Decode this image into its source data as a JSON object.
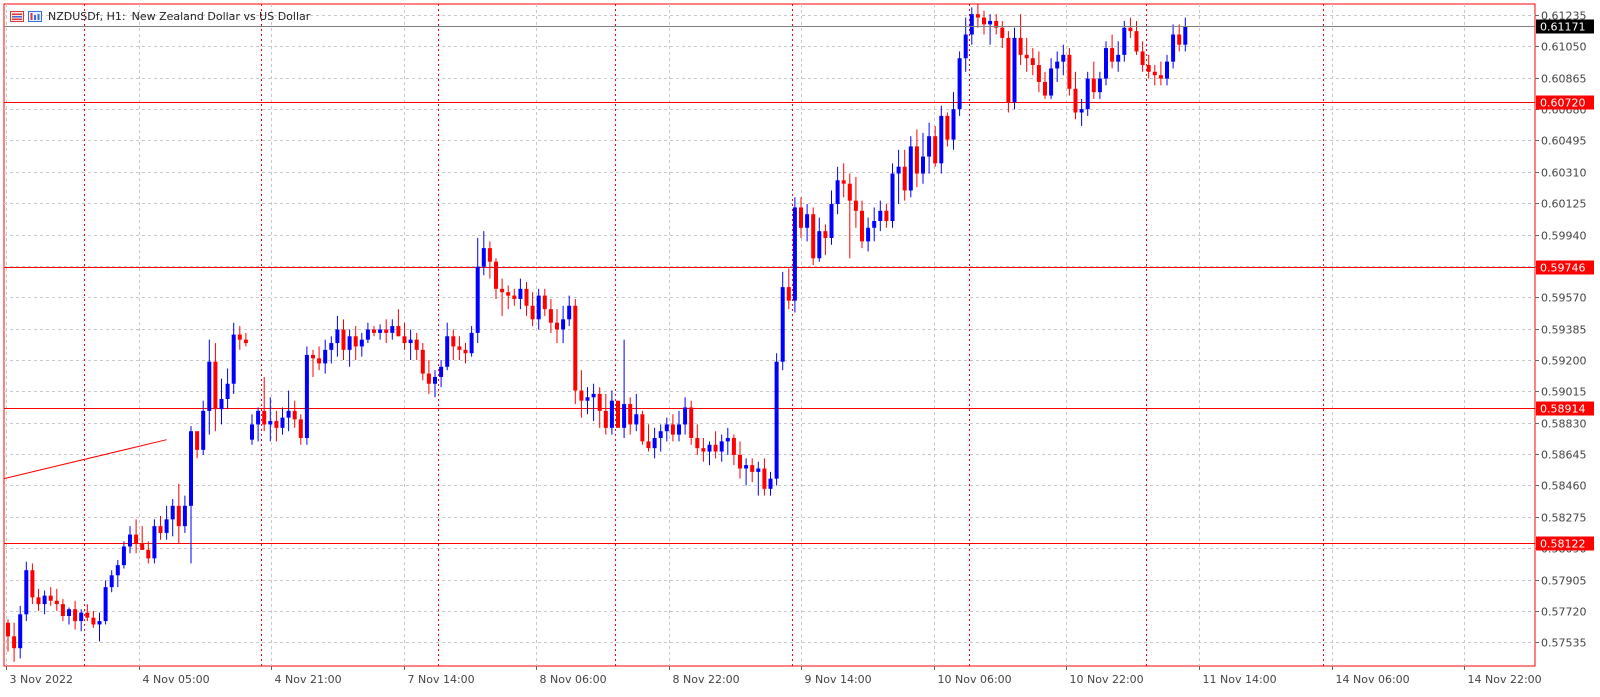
{
  "header": {
    "symbol": "NZDUSDf, H1:",
    "description": "New Zealand Dollar vs US Dollar",
    "icons": [
      "chart-window-icon",
      "symbol-icon"
    ]
  },
  "colors": {
    "bull": "#0000ff",
    "bear": "#ff0000",
    "grid": "#c8c8c8",
    "period_sep": "#ff0000",
    "hline": "#ff0000",
    "bid_line": "#808080",
    "price_label_bg": "#ff0000",
    "current_label_bg": "#000000",
    "axis": "#ff0000",
    "axis_text": "#444444"
  },
  "chart_data": {
    "type": "candlestick",
    "title": "",
    "timeframe": "H1",
    "ylim": [
      0.57395,
      0.613
    ],
    "y_ticks": [
      "0.61235",
      "0.61050",
      "0.60865",
      "0.60680",
      "0.60495",
      "0.60310",
      "0.60125",
      "0.59940",
      "0.59755",
      "0.59570",
      "0.59385",
      "0.59200",
      "0.59015",
      "0.58830",
      "0.58645",
      "0.58460",
      "0.58275",
      "0.58090",
      "0.57905",
      "0.57720",
      "0.57535"
    ],
    "x_ticks": [
      "3 Nov 2022",
      "4 Nov 05:00",
      "4 Nov 21:00",
      "7 Nov 14:00",
      "8 Nov 06:00",
      "8 Nov 22:00",
      "9 Nov 14:00",
      "10 Nov 06:00",
      "10 Nov 22:00",
      "11 Nov 14:00",
      "14 Nov 06:00",
      "14 Nov 22:00"
    ],
    "horizontal_lines": [
      {
        "price": 0.6072,
        "label": "0.60720"
      },
      {
        "price": 0.59746,
        "label": "0.59746"
      },
      {
        "price": 0.58914,
        "label": "0.58914"
      },
      {
        "price": 0.58122,
        "label": "0.58122"
      }
    ],
    "current_price": {
      "price": 0.61171,
      "label": "0.61171"
    },
    "trend_line": {
      "from": [
        0,
        0.585
      ],
      "to": [
        26,
        0.5873
      ]
    },
    "period_separators": [
      13,
      42,
      71,
      100,
      129,
      158,
      187,
      216
    ],
    "candles": [
      [
        0.5765,
        0.5767,
        0.5748,
        0.5757
      ],
      [
        0.5757,
        0.5765,
        0.5742,
        0.575
      ],
      [
        0.575,
        0.5775,
        0.5744,
        0.577
      ],
      [
        0.577,
        0.5801,
        0.5766,
        0.5796
      ],
      [
        0.5796,
        0.58,
        0.5776,
        0.578
      ],
      [
        0.578,
        0.5785,
        0.5772,
        0.5776
      ],
      [
        0.5776,
        0.5784,
        0.577,
        0.5781
      ],
      [
        0.5781,
        0.5786,
        0.5775,
        0.5778
      ],
      [
        0.5778,
        0.5785,
        0.5772,
        0.5776
      ],
      [
        0.5776,
        0.5779,
        0.5766,
        0.5769
      ],
      [
        0.5769,
        0.5774,
        0.5764,
        0.5773
      ],
      [
        0.5773,
        0.5778,
        0.5761,
        0.5766
      ],
      [
        0.5766,
        0.5773,
        0.576,
        0.5771
      ],
      [
        0.5771,
        0.5776,
        0.5766,
        0.5768
      ],
      [
        0.5768,
        0.5772,
        0.5762,
        0.5764
      ],
      [
        0.5764,
        0.5771,
        0.5754,
        0.5766
      ],
      [
        0.5766,
        0.579,
        0.5764,
        0.5786
      ],
      [
        0.5786,
        0.5796,
        0.5783,
        0.5793
      ],
      [
        0.5793,
        0.5802,
        0.5786,
        0.5799
      ],
      [
        0.5799,
        0.5813,
        0.5797,
        0.581
      ],
      [
        0.581,
        0.5822,
        0.5806,
        0.5817
      ],
      [
        0.5817,
        0.5826,
        0.5806,
        0.5812
      ],
      [
        0.5812,
        0.5822,
        0.5808,
        0.5808
      ],
      [
        0.5808,
        0.5813,
        0.58,
        0.5803
      ],
      [
        0.5803,
        0.5826,
        0.58,
        0.5822
      ],
      [
        0.5822,
        0.5828,
        0.5814,
        0.5818
      ],
      [
        0.5818,
        0.5834,
        0.5814,
        0.5826
      ],
      [
        0.5826,
        0.5838,
        0.5816,
        0.5834
      ],
      [
        0.5834,
        0.5847,
        0.5812,
        0.5822
      ],
      [
        0.5822,
        0.584,
        0.5818,
        0.5834
      ],
      [
        0.5834,
        0.5881,
        0.58,
        0.5878
      ],
      [
        0.5878,
        0.5878,
        0.5862,
        0.5867
      ],
      [
        0.5867,
        0.5896,
        0.5864,
        0.589
      ],
      [
        0.589,
        0.5932,
        0.5876,
        0.5919
      ],
      [
        0.5919,
        0.593,
        0.5878,
        0.5891
      ],
      [
        0.5891,
        0.5909,
        0.5882,
        0.5897
      ],
      [
        0.5897,
        0.5915,
        0.5891,
        0.5906
      ],
      [
        0.5906,
        0.5942,
        0.59,
        0.5935
      ],
      [
        0.5935,
        0.594,
        0.5926,
        0.5932
      ],
      [
        0.5932,
        0.5936,
        0.5928,
        0.593
      ],
      [
        0.5873,
        0.5888,
        0.587,
        0.5882
      ],
      [
        0.5882,
        0.5892,
        0.5872,
        0.589
      ],
      [
        0.589,
        0.591,
        0.5878,
        0.5882
      ],
      [
        0.5882,
        0.5898,
        0.5872,
        0.5884
      ],
      [
        0.5884,
        0.589,
        0.5872,
        0.588
      ],
      [
        0.588,
        0.5892,
        0.5876,
        0.5886
      ],
      [
        0.5886,
        0.5902,
        0.5878,
        0.589
      ],
      [
        0.589,
        0.5896,
        0.588,
        0.5885
      ],
      [
        0.5885,
        0.5888,
        0.587,
        0.5874
      ],
      [
        0.5874,
        0.5928,
        0.587,
        0.5923
      ],
      [
        0.5923,
        0.5926,
        0.591,
        0.5921
      ],
      [
        0.5921,
        0.5928,
        0.5914,
        0.5918
      ],
      [
        0.5918,
        0.5932,
        0.5912,
        0.5926
      ],
      [
        0.5926,
        0.5934,
        0.5918,
        0.593
      ],
      [
        0.593,
        0.5946,
        0.5922,
        0.5938
      ],
      [
        0.5938,
        0.5944,
        0.592,
        0.5926
      ],
      [
        0.5926,
        0.5938,
        0.5916,
        0.5934
      ],
      [
        0.5934,
        0.594,
        0.592,
        0.5928
      ],
      [
        0.5928,
        0.5936,
        0.5922,
        0.5932
      ],
      [
        0.5932,
        0.5942,
        0.593,
        0.5938
      ],
      [
        0.5938,
        0.594,
        0.5934,
        0.5936
      ],
      [
        0.5936,
        0.5941,
        0.5932,
        0.5938
      ],
      [
        0.5938,
        0.5944,
        0.593,
        0.5936
      ],
      [
        0.5936,
        0.5944,
        0.5932,
        0.594
      ],
      [
        0.594,
        0.595,
        0.5934,
        0.5934
      ],
      [
        0.5934,
        0.5942,
        0.5926,
        0.593
      ],
      [
        0.593,
        0.5938,
        0.592,
        0.5932
      ],
      [
        0.5932,
        0.5936,
        0.592,
        0.5926
      ],
      [
        0.5926,
        0.593,
        0.5908,
        0.5912
      ],
      [
        0.5912,
        0.592,
        0.59,
        0.5906
      ],
      [
        0.5906,
        0.5914,
        0.5898,
        0.591
      ],
      [
        0.591,
        0.592,
        0.5904,
        0.5916
      ],
      [
        0.5916,
        0.5942,
        0.5914,
        0.5934
      ],
      [
        0.5934,
        0.5938,
        0.592,
        0.5928
      ],
      [
        0.5928,
        0.5934,
        0.592,
        0.5926
      ],
      [
        0.5926,
        0.593,
        0.5918,
        0.5924
      ],
      [
        0.5924,
        0.594,
        0.5922,
        0.5936
      ],
      [
        0.5936,
        0.5992,
        0.593,
        0.5975
      ],
      [
        0.5975,
        0.5996,
        0.597,
        0.5986
      ],
      [
        0.5986,
        0.599,
        0.5968,
        0.5978
      ],
      [
        0.5978,
        0.598,
        0.5956,
        0.5962
      ],
      [
        0.5962,
        0.5968,
        0.5946,
        0.596
      ],
      [
        0.596,
        0.5964,
        0.595,
        0.5958
      ],
      [
        0.5958,
        0.5962,
        0.5952,
        0.5956
      ],
      [
        0.5956,
        0.5968,
        0.595,
        0.5962
      ],
      [
        0.5962,
        0.5966,
        0.5946,
        0.5952
      ],
      [
        0.5952,
        0.596,
        0.594,
        0.5944
      ],
      [
        0.5944,
        0.5962,
        0.5938,
        0.5958
      ],
      [
        0.5958,
        0.5962,
        0.5946,
        0.595
      ],
      [
        0.595,
        0.5956,
        0.5936,
        0.5942
      ],
      [
        0.5942,
        0.595,
        0.593,
        0.5938
      ],
      [
        0.5938,
        0.5952,
        0.593,
        0.5944
      ],
      [
        0.5944,
        0.5958,
        0.594,
        0.5952
      ],
      [
        0.5952,
        0.5956,
        0.5894,
        0.5902
      ],
      [
        0.5902,
        0.5914,
        0.5886,
        0.5896
      ],
      [
        0.5896,
        0.5904,
        0.5888,
        0.5898
      ],
      [
        0.5898,
        0.5906,
        0.5884,
        0.59
      ],
      [
        0.59,
        0.5904,
        0.588,
        0.589
      ],
      [
        0.589,
        0.59,
        0.5876,
        0.588
      ],
      [
        0.588,
        0.5902,
        0.5876,
        0.5896
      ],
      [
        0.5896,
        0.5896,
        0.588,
        0.588
      ],
      [
        0.588,
        0.5932,
        0.5874,
        0.5894
      ],
      [
        0.5894,
        0.5898,
        0.5876,
        0.5882
      ],
      [
        0.5882,
        0.59,
        0.5878,
        0.5888
      ],
      [
        0.5888,
        0.589,
        0.587,
        0.5872
      ],
      [
        0.5872,
        0.5882,
        0.5866,
        0.5868
      ],
      [
        0.5868,
        0.588,
        0.5862,
        0.5874
      ],
      [
        0.5874,
        0.5882,
        0.5866,
        0.5878
      ],
      [
        0.5878,
        0.5886,
        0.5872,
        0.5882
      ],
      [
        0.5882,
        0.5888,
        0.5872,
        0.5876
      ],
      [
        0.5876,
        0.589,
        0.5872,
        0.5882
      ],
      [
        0.5882,
        0.5898,
        0.5876,
        0.5892
      ],
      [
        0.5892,
        0.5896,
        0.587,
        0.5874
      ],
      [
        0.5874,
        0.5882,
        0.5864,
        0.5868
      ],
      [
        0.5868,
        0.5874,
        0.586,
        0.5866
      ],
      [
        0.5866,
        0.5872,
        0.5858,
        0.587
      ],
      [
        0.587,
        0.5878,
        0.5862,
        0.5866
      ],
      [
        0.5866,
        0.5876,
        0.586,
        0.5872
      ],
      [
        0.5872,
        0.588,
        0.5864,
        0.5874
      ],
      [
        0.5874,
        0.5876,
        0.5858,
        0.5864
      ],
      [
        0.5864,
        0.5872,
        0.585,
        0.5856
      ],
      [
        0.5856,
        0.5862,
        0.5846,
        0.5858
      ],
      [
        0.5858,
        0.5862,
        0.5848,
        0.5854
      ],
      [
        0.5854,
        0.586,
        0.584,
        0.5856
      ],
      [
        0.5856,
        0.5862,
        0.584,
        0.5844
      ],
      [
        0.5844,
        0.5854,
        0.584,
        0.585
      ],
      [
        0.585,
        0.5924,
        0.5846,
        0.5919
      ],
      [
        0.5919,
        0.5972,
        0.5914,
        0.5963
      ],
      [
        0.5963,
        0.5974,
        0.595,
        0.5955
      ],
      [
        0.5955,
        0.6016,
        0.5948,
        0.601
      ],
      [
        0.601,
        0.6016,
        0.5992,
        0.5998
      ],
      [
        0.5998,
        0.6012,
        0.599,
        0.6006
      ],
      [
        0.6006,
        0.601,
        0.5976,
        0.598
      ],
      [
        0.598,
        0.6004,
        0.5978,
        0.5996
      ],
      [
        0.5996,
        0.6,
        0.5982,
        0.5992
      ],
      [
        0.5992,
        0.602,
        0.5988,
        0.6012
      ],
      [
        0.6012,
        0.6034,
        0.6006,
        0.6026
      ],
      [
        0.6026,
        0.6036,
        0.6016,
        0.6024
      ],
      [
        0.6024,
        0.603,
        0.598,
        0.6014
      ],
      [
        0.6014,
        0.6028,
        0.5998,
        0.6008
      ],
      [
        0.6008,
        0.6014,
        0.5986,
        0.599
      ],
      [
        0.599,
        0.6004,
        0.5984,
        0.5998
      ],
      [
        0.5998,
        0.601,
        0.599,
        0.6002
      ],
      [
        0.6002,
        0.6014,
        0.5996,
        0.6008
      ],
      [
        0.6008,
        0.6012,
        0.5998,
        0.6002
      ],
      [
        0.6002,
        0.6036,
        0.5998,
        0.603
      ],
      [
        0.603,
        0.6044,
        0.6012,
        0.6034
      ],
      [
        0.6034,
        0.6044,
        0.6014,
        0.602
      ],
      [
        0.602,
        0.6052,
        0.6016,
        0.6046
      ],
      [
        0.6046,
        0.6056,
        0.6022,
        0.603
      ],
      [
        0.603,
        0.6054,
        0.6024,
        0.604
      ],
      [
        0.604,
        0.606,
        0.603,
        0.6052
      ],
      [
        0.6052,
        0.6058,
        0.6034,
        0.6036
      ],
      [
        0.6036,
        0.607,
        0.603,
        0.6064
      ],
      [
        0.6064,
        0.6066,
        0.6046,
        0.605
      ],
      [
        0.605,
        0.6078,
        0.6044,
        0.6068
      ],
      [
        0.6068,
        0.6102,
        0.6064,
        0.6098
      ],
      [
        0.6098,
        0.6122,
        0.609,
        0.6112
      ],
      [
        0.6112,
        0.6128,
        0.6106,
        0.6124
      ],
      [
        0.6124,
        0.613,
        0.6116,
        0.6122
      ],
      [
        0.6122,
        0.6126,
        0.6112,
        0.6118
      ],
      [
        0.6118,
        0.6124,
        0.6106,
        0.612
      ],
      [
        0.612,
        0.6124,
        0.6112,
        0.6116
      ],
      [
        0.6116,
        0.612,
        0.6104,
        0.611
      ],
      [
        0.611,
        0.6114,
        0.6066,
        0.6072
      ],
      [
        0.6072,
        0.6116,
        0.6068,
        0.611
      ],
      [
        0.611,
        0.6124,
        0.6094,
        0.61
      ],
      [
        0.61,
        0.611,
        0.609,
        0.6098
      ],
      [
        0.6098,
        0.6104,
        0.6088,
        0.6094
      ],
      [
        0.6094,
        0.6102,
        0.6078,
        0.6084
      ],
      [
        0.6084,
        0.609,
        0.6074,
        0.6076
      ],
      [
        0.6076,
        0.6098,
        0.6074,
        0.6092
      ],
      [
        0.6092,
        0.6102,
        0.6084,
        0.6096
      ],
      [
        0.6096,
        0.6106,
        0.6088,
        0.61
      ],
      [
        0.61,
        0.6104,
        0.6076,
        0.608
      ],
      [
        0.608,
        0.609,
        0.6062,
        0.6066
      ],
      [
        0.6066,
        0.6074,
        0.6058,
        0.6068
      ],
      [
        0.6068,
        0.609,
        0.6064,
        0.6086
      ],
      [
        0.6086,
        0.6096,
        0.6074,
        0.6078
      ],
      [
        0.6078,
        0.609,
        0.6074,
        0.6086
      ],
      [
        0.6086,
        0.6108,
        0.6082,
        0.6104
      ],
      [
        0.6104,
        0.6112,
        0.6092,
        0.6096
      ],
      [
        0.6096,
        0.6108,
        0.609,
        0.61
      ],
      [
        0.61,
        0.612,
        0.6096,
        0.6116
      ],
      [
        0.6116,
        0.6122,
        0.611,
        0.6114
      ],
      [
        0.6114,
        0.612,
        0.61,
        0.6102
      ],
      [
        0.6102,
        0.6108,
        0.609,
        0.6094
      ],
      [
        0.6094,
        0.61,
        0.6086,
        0.609
      ],
      [
        0.609,
        0.6094,
        0.6082,
        0.6088
      ],
      [
        0.6088,
        0.6096,
        0.6082,
        0.6086
      ],
      [
        0.6086,
        0.61,
        0.6082,
        0.6096
      ],
      [
        0.6096,
        0.6118,
        0.6092,
        0.6112
      ],
      [
        0.6112,
        0.6118,
        0.6102,
        0.6106
      ],
      [
        0.6106,
        0.6122,
        0.6102,
        0.6117
      ]
    ]
  }
}
